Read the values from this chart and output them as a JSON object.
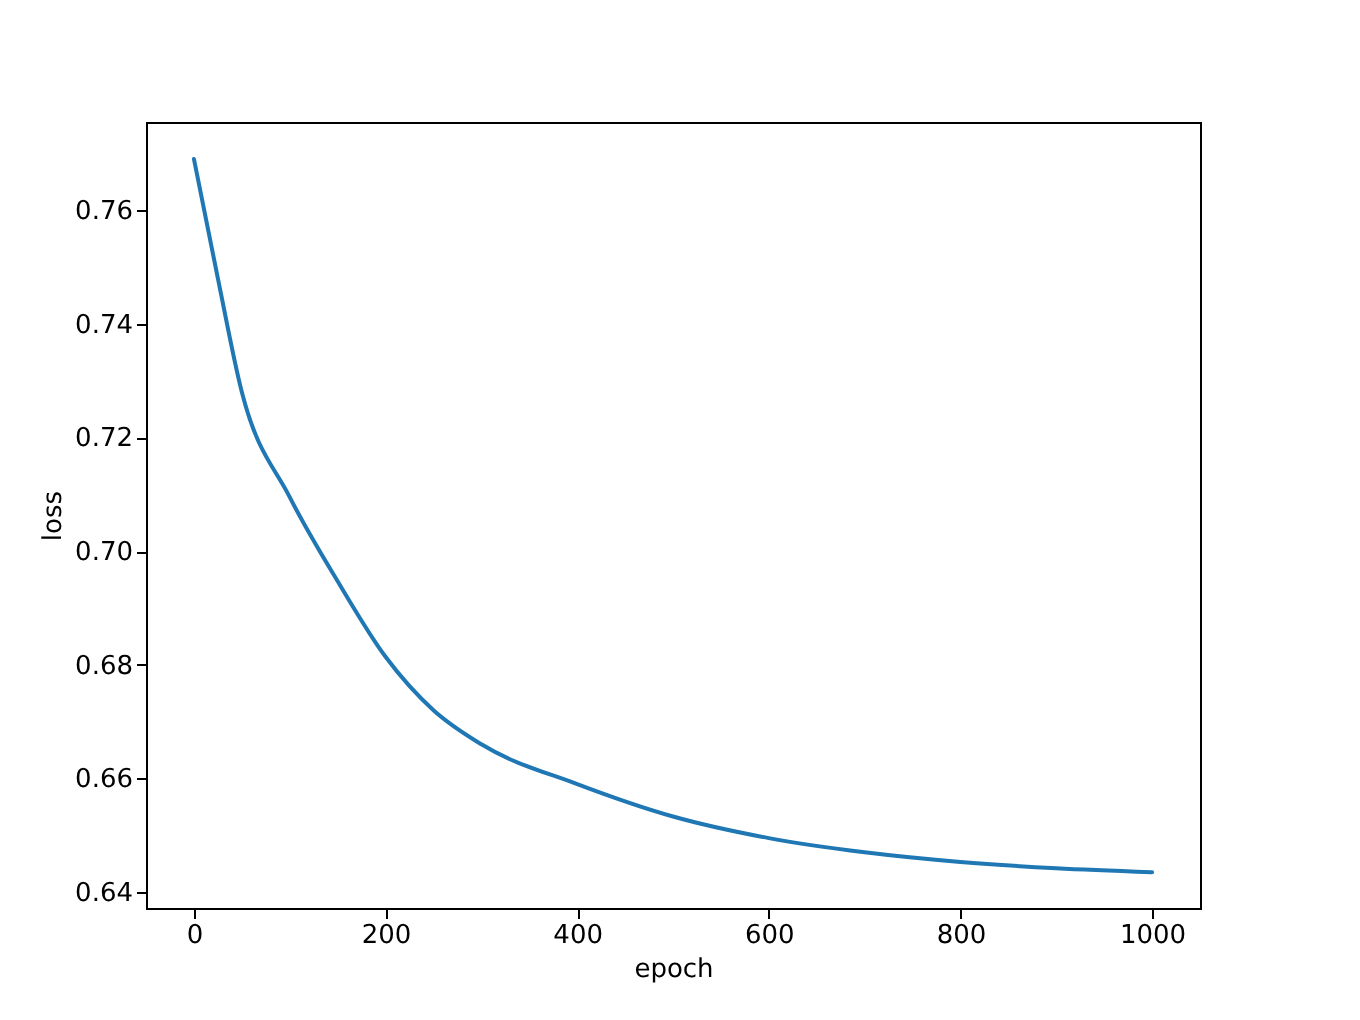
{
  "chart_data": {
    "type": "line",
    "xlabel": "epoch",
    "ylabel": "loss",
    "x": [
      0,
      25,
      50,
      100,
      150,
      200,
      250,
      300,
      400,
      500,
      600,
      700,
      800,
      900,
      1000
    ],
    "series": [
      {
        "color": "#1f77b4",
        "values": [
          0.769,
          0.748,
          0.728,
          0.7095,
          0.6947,
          0.6814,
          0.672,
          0.666,
          0.659,
          0.6533,
          0.6495,
          0.647,
          0.6453,
          0.6442,
          0.6435
        ]
      }
    ],
    "xlim": [
      -50,
      1050
    ],
    "ylim": [
      0.6372,
      0.7755
    ],
    "xticks": [
      0,
      200,
      400,
      600,
      800,
      1000
    ],
    "yticks": [
      0.64,
      0.66,
      0.68,
      {
        "value": 0.7,
        "label": "0.70"
      },
      0.72,
      0.74,
      0.76
    ],
    "grid": false,
    "line_style": "solid",
    "marker": "none"
  }
}
